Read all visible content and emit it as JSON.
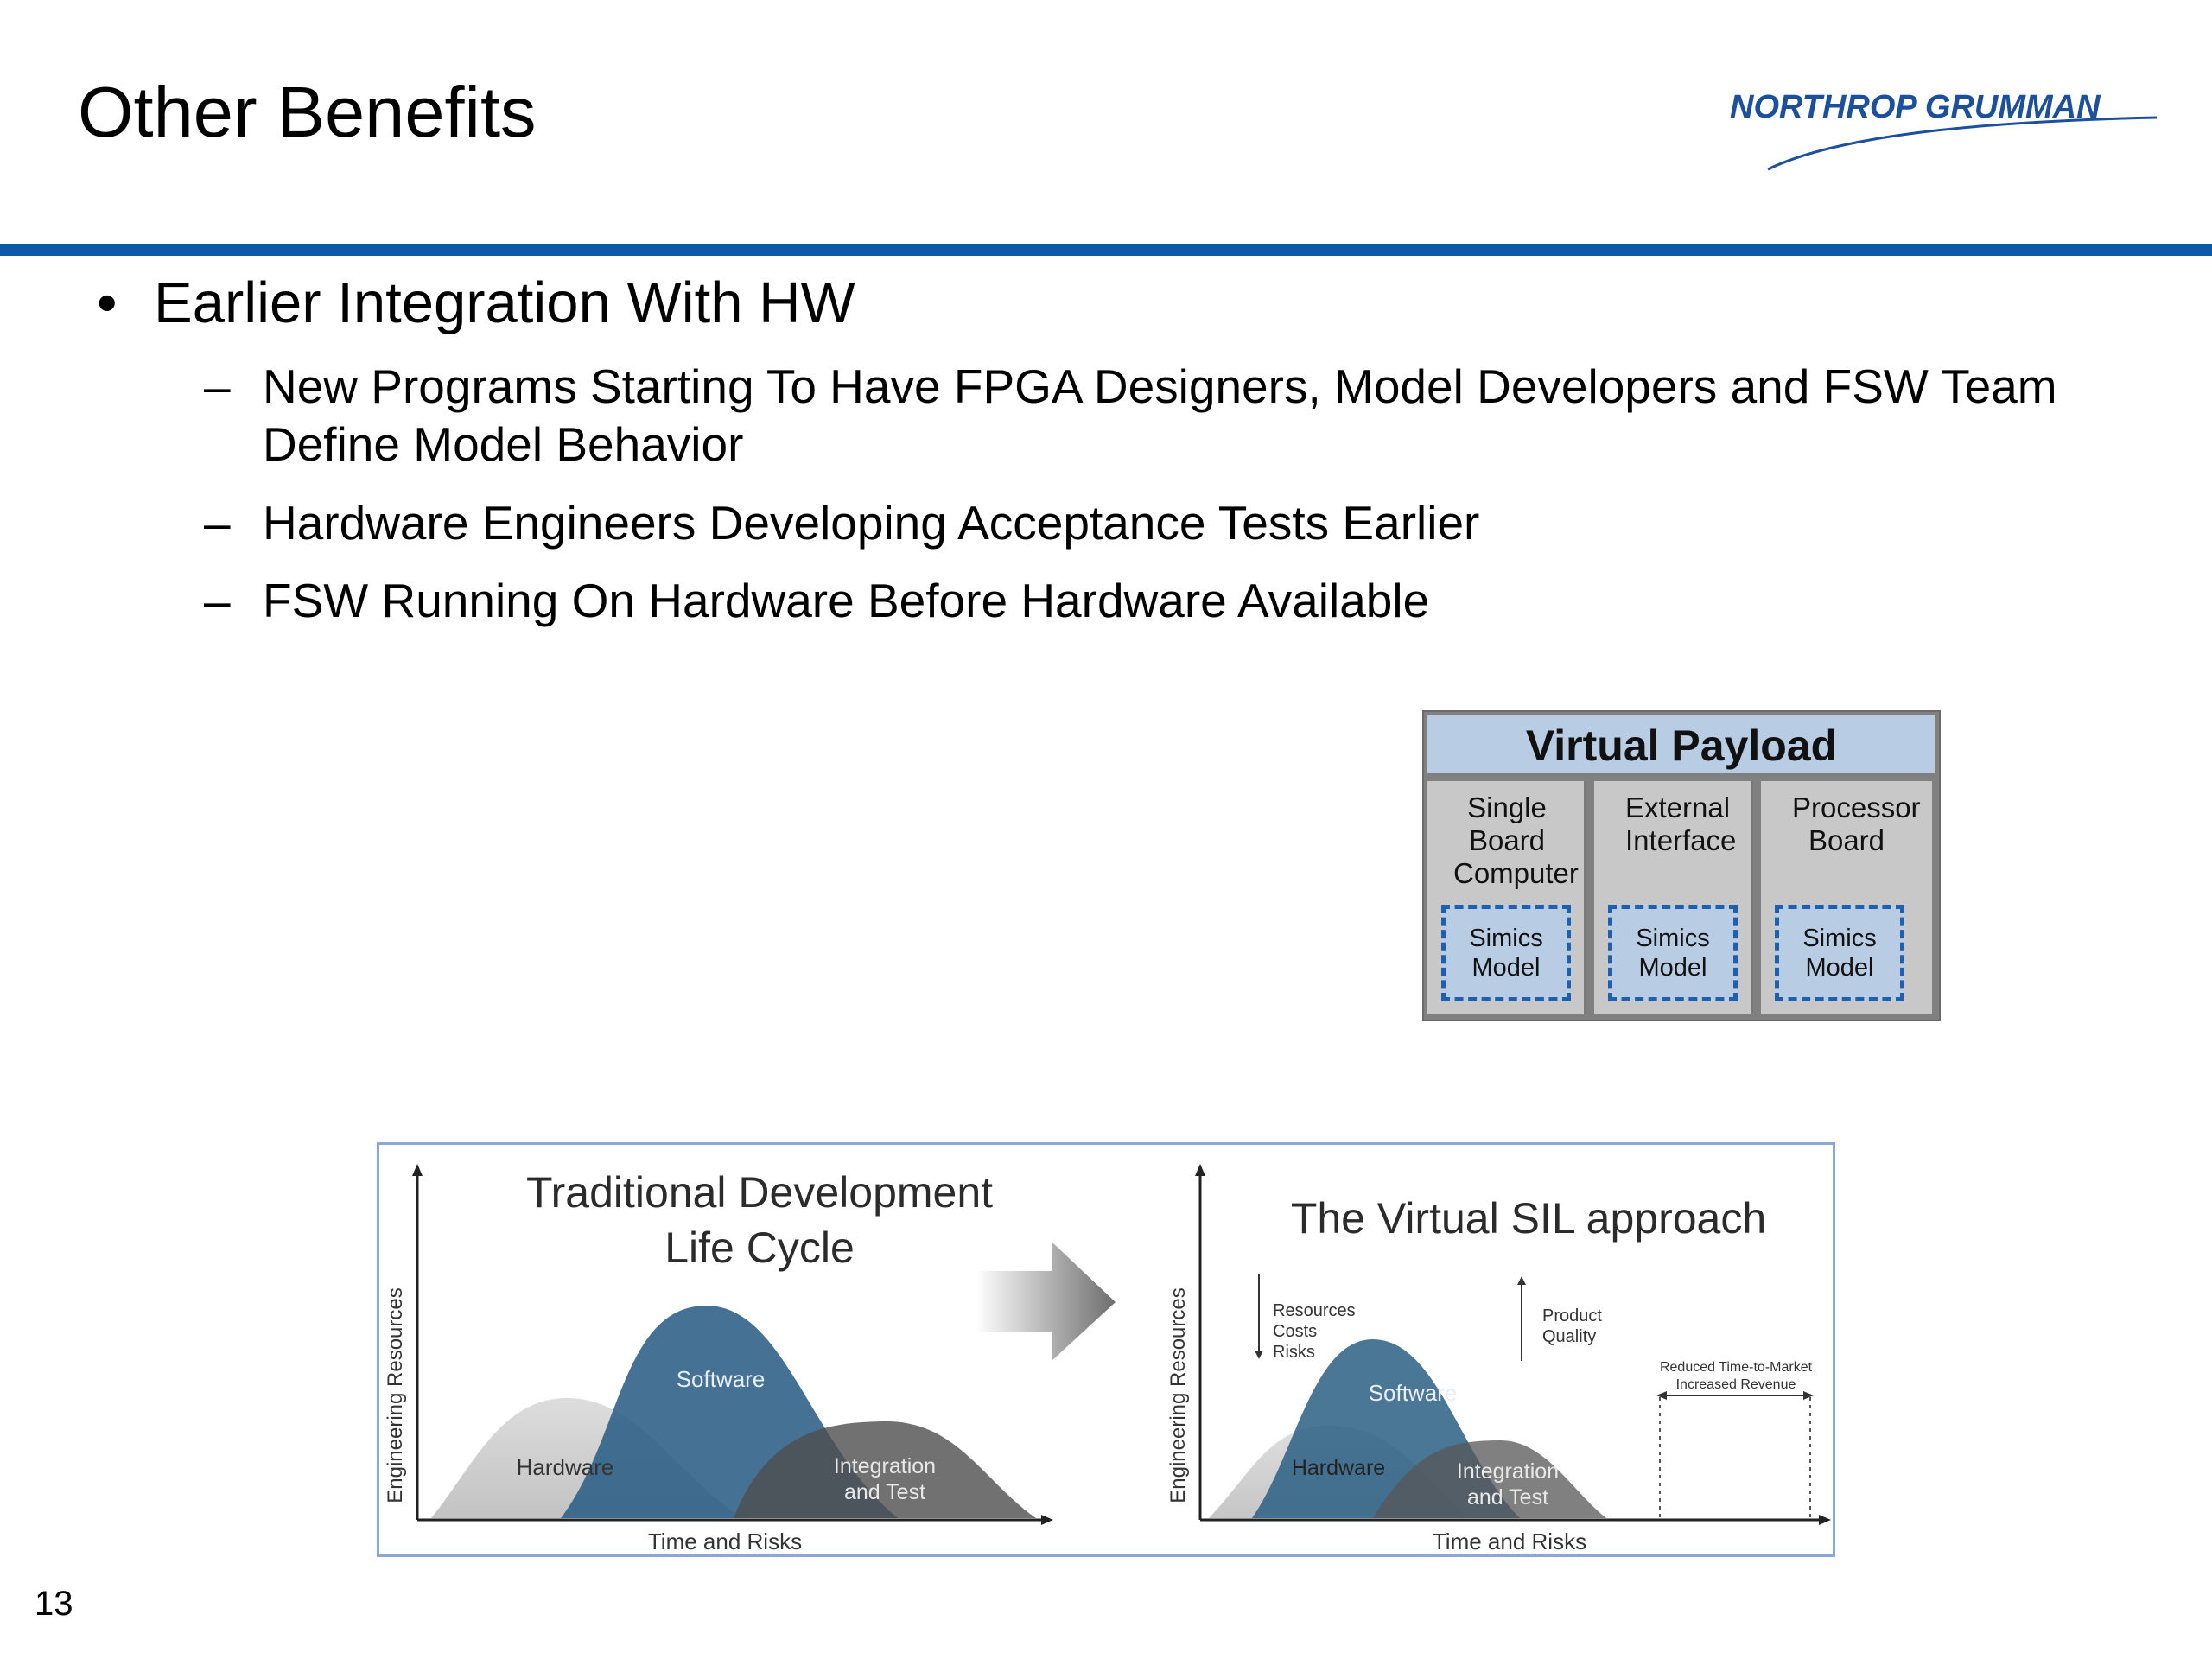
{
  "slide": {
    "title": "Other Benefits",
    "page_number": "13",
    "logo_text": "NORTHROP GRUMMAN",
    "accent_color": "#0b5aa7"
  },
  "bullets": {
    "main": {
      "marker": "•",
      "text": "Earlier Integration With HW"
    },
    "subs": [
      {
        "marker": "–",
        "text": "New Programs Starting To Have FPGA Designers, Model Developers and FSW Team Define Model Behavior"
      },
      {
        "marker": "–",
        "text": "Hardware Engineers Developing Acceptance Tests Earlier"
      },
      {
        "marker": "–",
        "text": "FSW Running On Hardware Before Hardware Available"
      }
    ]
  },
  "virtual_payload": {
    "title": "Virtual Payload",
    "columns": [
      {
        "label": "Single Board Computer",
        "model": "Simics Model"
      },
      {
        "label": "External Interface",
        "model": "Simics Model"
      },
      {
        "label": "Processor Board",
        "model": "Simics Model"
      }
    ]
  },
  "diagram": {
    "left": {
      "title_line1": "Traditional Development",
      "title_line2": "Life Cycle",
      "y_axis": "Engineering Resources",
      "x_axis": "Time and Risks",
      "hardware": "Hardware",
      "software": "Software",
      "integration_line1": "Integration",
      "integration_line2": "and Test"
    },
    "right": {
      "title": "The Virtual SIL approach",
      "y_axis": "Engineering Resources",
      "x_axis": "Time and Risks",
      "hardware": "Hardware",
      "software": "Software",
      "integration_line1": "Integration",
      "integration_line2": "and Test",
      "down_note": [
        "Resources",
        "Costs",
        "Risks"
      ],
      "up_note": [
        "Product",
        "Quality"
      ],
      "market_note_line1": "Reduced Time-to-Market",
      "market_note_line2": "Increased Revenue"
    }
  }
}
